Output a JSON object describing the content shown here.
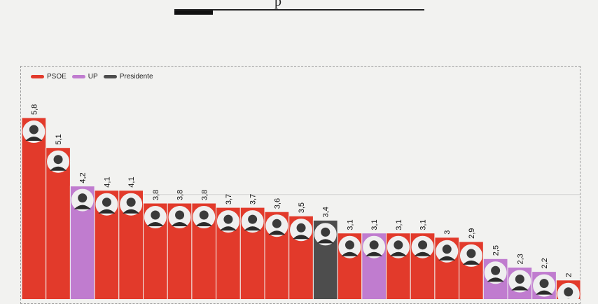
{
  "header": {
    "title_fragment": "p"
  },
  "legend": {
    "items": [
      {
        "label": "PSOE",
        "color": "#e23a2b"
      },
      {
        "label": "UP",
        "color": "#c07ccf"
      },
      {
        "label": "Presidente",
        "color": "#4d4d4d"
      }
    ]
  },
  "chart_data": {
    "type": "bar",
    "categories": [
      "",
      "",
      "",
      "",
      "",
      "",
      "",
      "",
      "",
      "",
      "",
      "",
      "",
      "",
      "",
      "",
      "",
      "",
      "",
      "",
      "",
      "",
      ""
    ],
    "values": [
      5.8,
      5.1,
      4.2,
      4.1,
      4.1,
      3.8,
      3.8,
      3.8,
      3.7,
      3.7,
      3.6,
      3.5,
      3.4,
      3.1,
      3.1,
      3.1,
      3.1,
      3,
      2.9,
      2.5,
      2.3,
      2.2,
      2
    ],
    "value_labels": [
      "5,8",
      "5,1",
      "4,2",
      "4,1",
      "4,1",
      "3,8",
      "3,8",
      "3,8",
      "3,7",
      "3,7",
      "3,6",
      "3,5",
      "3,4",
      "3,1",
      "3,1",
      "3,1",
      "3,1",
      "3",
      "2,9",
      "2,5",
      "2,3",
      "2,2",
      "2"
    ],
    "groups": [
      "PSOE",
      "PSOE",
      "UP",
      "PSOE",
      "PSOE",
      "PSOE",
      "PSOE",
      "PSOE",
      "PSOE",
      "PSOE",
      "PSOE",
      "PSOE",
      "Presidente",
      "PSOE",
      "UP",
      "PSOE",
      "PSOE",
      "PSOE",
      "PSOE",
      "UP",
      "UP",
      "UP",
      "PSOE"
    ],
    "colors": {
      "PSOE": "#e23a2b",
      "UP": "#c07ccf",
      "Presidente": "#4d4d4d"
    },
    "gridlines": [
      4
    ],
    "legend_position": "top-left"
  }
}
